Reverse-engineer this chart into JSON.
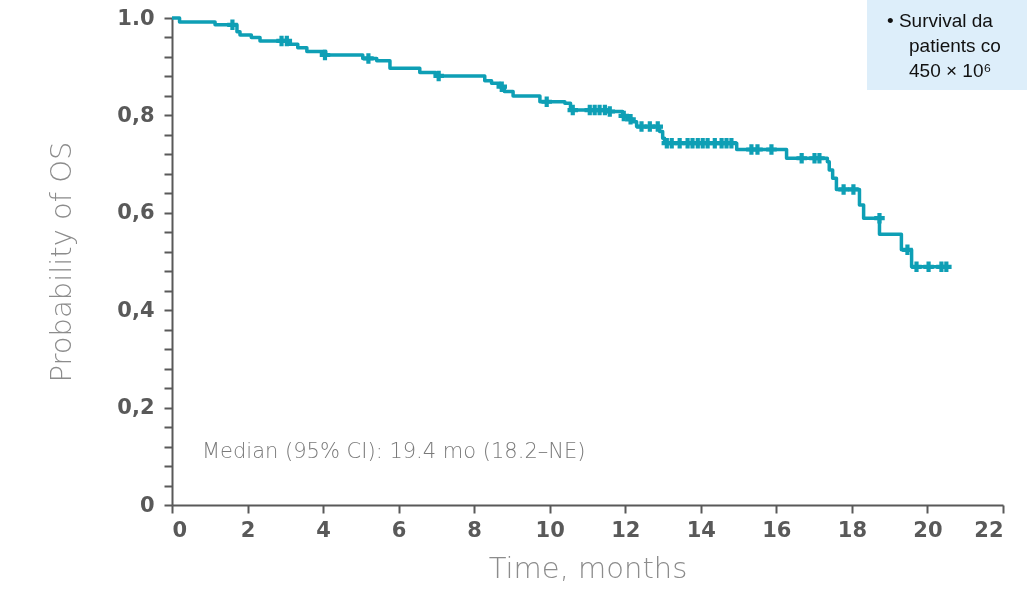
{
  "chart_data": {
    "type": "step",
    "xlabel": "Time, months",
    "ylabel": "Probability of OS",
    "xlim": [
      0,
      22
    ],
    "xticks": [
      0,
      2,
      4,
      6,
      8,
      10,
      12,
      14,
      16,
      18,
      20,
      22
    ],
    "ylim": [
      0,
      1
    ],
    "yticks": [
      0,
      {
        "value": 0.04,
        "label": null
      },
      {
        "value": 0.08,
        "label": null
      },
      {
        "value": 0.12,
        "label": null
      },
      {
        "value": 0.16,
        "label": null
      },
      {
        "value": 0.2,
        "label": "0,2"
      },
      {
        "value": 0.24,
        "label": null
      },
      {
        "value": 0.28,
        "label": null
      },
      {
        "value": 0.32,
        "label": null
      },
      {
        "value": 0.36,
        "label": null
      },
      {
        "value": 0.4,
        "label": "0,4"
      },
      {
        "value": 0.44,
        "label": null
      },
      {
        "value": 0.48,
        "label": null
      },
      {
        "value": 0.52,
        "label": null
      },
      {
        "value": 0.56,
        "label": null
      },
      {
        "value": 0.6,
        "label": "0,6"
      },
      {
        "value": 0.64,
        "label": null
      },
      {
        "value": 0.68,
        "label": null
      },
      {
        "value": 0.72,
        "label": null
      },
      {
        "value": 0.76,
        "label": null
      },
      {
        "value": 0.8,
        "label": "0,8"
      },
      {
        "value": 0.84,
        "label": null
      },
      {
        "value": 0.88,
        "label": null
      },
      {
        "value": 0.92,
        "label": null
      },
      {
        "value": 0.96,
        "label": null
      },
      {
        "value": 1,
        "label": "1.0"
      }
    ],
    "annotations": [
      "Median (95% CI): 19.4 mo (18.2–NE)",
      "• Survival da",
      "patients co",
      "450 × 10⁶"
    ],
    "series": [
      {
        "type": "step",
        "color": "#0e9fb5",
        "x": [
          0,
          0.2,
          1.14,
          1.72,
          1.8,
          2.1,
          2.33,
          3.07,
          3.33,
          3.57,
          4.07,
          5.05,
          5.42,
          5.77,
          6.56,
          6.98,
          8.28,
          8.46,
          8.68,
          8.8,
          9.03,
          9.74,
          10.4,
          10.55,
          11.5,
          11.93,
          12.06,
          12.2,
          12.3,
          12.91,
          12.99,
          13.04,
          14.95,
          16.27,
          17.35,
          17.4,
          17.49,
          17.59,
          18.2,
          18.31,
          18.73,
          19.31,
          19.58,
          20.5
        ],
        "values": [
          1,
          0.992,
          0.986,
          0.972,
          0.965,
          0.96,
          0.953,
          0.946,
          0.939,
          0.931,
          0.924,
          0.917,
          0.912,
          0.897,
          0.888,
          0.881,
          0.871,
          0.866,
          0.859,
          0.849,
          0.84,
          0.828,
          0.825,
          0.811,
          0.808,
          0.799,
          0.792,
          0.787,
          0.777,
          0.767,
          0.753,
          0.743,
          0.73,
          0.712,
          0.705,
          0.688,
          0.671,
          0.648,
          0.616,
          0.589,
          0.556,
          0.524,
          0.489,
          0.489
        ]
      },
      {
        "type": "scatter",
        "marker": "cross",
        "color": "#0e9fb5",
        "x": [
          1.6,
          2.9,
          3.04,
          4.05,
          5.2,
          7.06,
          8.73,
          9.92,
          10.61,
          11.06,
          11.19,
          11.32,
          11.46,
          11.59,
          11.96,
          12.14,
          12.43,
          12.65,
          12.86,
          13.1,
          13.23,
          13.44,
          13.65,
          13.78,
          13.92,
          14.05,
          14.18,
          14.37,
          14.55,
          14.68,
          14.81,
          15.34,
          15.5,
          15.87,
          16.67,
          17.01,
          17.14,
          17.78,
          18.04,
          18.73,
          19.47,
          19.71,
          20.03,
          20.37,
          20.5
        ],
        "values": [
          0.986,
          0.953,
          0.953,
          0.924,
          0.917,
          0.881,
          0.859,
          0.828,
          0.811,
          0.811,
          0.811,
          0.811,
          0.811,
          0.808,
          0.799,
          0.792,
          0.777,
          0.777,
          0.777,
          0.743,
          0.743,
          0.743,
          0.743,
          0.743,
          0.743,
          0.743,
          0.743,
          0.743,
          0.743,
          0.743,
          0.743,
          0.73,
          0.73,
          0.73,
          0.712,
          0.712,
          0.712,
          0.648,
          0.648,
          0.589,
          0.524,
          0.489,
          0.489,
          0.489,
          0.489
        ]
      }
    ]
  }
}
